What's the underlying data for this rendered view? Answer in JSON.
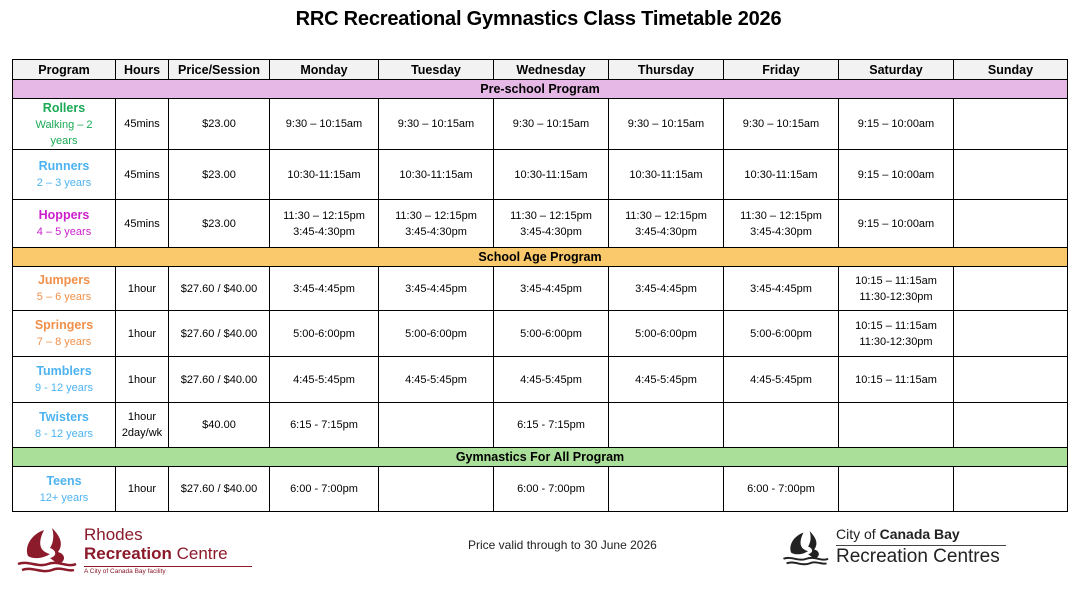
{
  "title": "RRC Recreational Gymnastics Class Timetable 2026",
  "table": {
    "headers": [
      "Program",
      "Hours",
      "Price/Session",
      "Monday",
      "Tuesday",
      "Wednesday",
      "Thursday",
      "Friday",
      "Saturday",
      "Sunday"
    ],
    "sections": [
      {
        "label": "Pre-school Program",
        "color": "#e6b8e6",
        "rows": [
          {
            "name": "Rollers",
            "age": "Walking –  2 years",
            "color": "#1aaa55",
            "hours": "45mins",
            "price": "$23.00",
            "days": [
              [
                "9:30 – 10:15am"
              ],
              [
                "9:30 – 10:15am"
              ],
              [
                "9:30 – 10:15am"
              ],
              [
                "9:30 – 10:15am"
              ],
              [
                "9:30 – 10:15am"
              ],
              [
                "9:15 – 10:00am"
              ],
              []
            ]
          },
          {
            "name": "Runners",
            "age": "2 –  3 years",
            "color": "#4db3f0",
            "hours": "45mins",
            "price": "$23.00",
            "days": [
              [
                "10:30-11:15am"
              ],
              [
                "10:30-11:15am"
              ],
              [
                "10:30-11:15am"
              ],
              [
                "10:30-11:15am"
              ],
              [
                "10:30-11:15am"
              ],
              [
                "9:15 – 10:00am"
              ],
              []
            ]
          },
          {
            "name": "Hoppers",
            "age": "4 – 5 years",
            "color": "#cc1fcc",
            "hours": "45mins",
            "price": "$23.00",
            "days": [
              [
                "11:30 – 12:15pm",
                "3:45-4:30pm"
              ],
              [
                "11:30 – 12:15pm",
                "3:45-4:30pm"
              ],
              [
                "11:30 – 12:15pm",
                "3:45-4:30pm"
              ],
              [
                "11:30 – 12:15pm",
                "3:45-4:30pm"
              ],
              [
                "11:30 – 12:15pm",
                "3:45-4:30pm"
              ],
              [
                "9:15 – 10:00am"
              ],
              []
            ]
          }
        ]
      },
      {
        "label": "School Age Program",
        "color": "#f9c96b",
        "rows": [
          {
            "name": "Jumpers",
            "age": "5 – 6 years",
            "color": "#f0904a",
            "hours": "1hour",
            "price": "$27.60 / $40.00",
            "days": [
              [
                "3:45-4:45pm"
              ],
              [
                "3:45-4:45pm"
              ],
              [
                "3:45-4:45pm"
              ],
              [
                "3:45-4:45pm"
              ],
              [
                "3:45-4:45pm"
              ],
              [
                "10:15 – 11:15am",
                "11:30-12:30pm"
              ],
              []
            ]
          },
          {
            "name": "Springers",
            "age": "7 – 8 years",
            "color": "#f0904a",
            "hours": "1hour",
            "price": "$27.60 / $40.00",
            "days": [
              [
                "5:00-6:00pm"
              ],
              [
                "5:00-6:00pm"
              ],
              [
                "5:00-6:00pm"
              ],
              [
                "5:00-6:00pm"
              ],
              [
                "5:00-6:00pm"
              ],
              [
                "10:15 – 11:15am",
                "11:30-12:30pm"
              ],
              []
            ]
          },
          {
            "name": "Tumblers",
            "age": "9 - 12 years",
            "color": "#4db3f0",
            "hours": "1hour",
            "price": "$27.60 / $40.00",
            "days": [
              [
                "4:45-5:45pm"
              ],
              [
                "4:45-5:45pm"
              ],
              [
                "4:45-5:45pm"
              ],
              [
                "4:45-5:45pm"
              ],
              [
                "4:45-5:45pm"
              ],
              [
                "10:15 – 11:15am"
              ],
              []
            ]
          },
          {
            "name": "Twisters",
            "age": "8 - 12 years",
            "color": "#4db3f0",
            "hours": "1hour 2day/wk",
            "hours_lines": [
              "1hour",
              "2day/wk"
            ],
            "price": "$40.00",
            "days": [
              [
                "6:15 - 7:15pm"
              ],
              [],
              [
                "6:15 - 7:15pm"
              ],
              [],
              [],
              [],
              []
            ]
          }
        ]
      },
      {
        "label": "Gymnastics For All Program",
        "color": "#a9df98",
        "rows": [
          {
            "name": "Teens",
            "age": "12+ years",
            "color": "#4db3f0",
            "hours": "1hour",
            "price": "$27.60 / $40.00",
            "days": [
              [
                "6:00 - 7:00pm"
              ],
              [],
              [
                "6:00 - 7:00pm"
              ],
              [],
              [
                "6:00 - 7:00pm"
              ],
              [],
              []
            ]
          }
        ]
      }
    ]
  },
  "footer": {
    "note": "Price valid through to 30 June 2026",
    "logo_left": {
      "line1": "Rhodes",
      "line2_bold": "Recreation",
      "line2_rest": " Centre",
      "tagline": "A City of Canada Bay facility",
      "color": "#8b1a2b",
      "icon": "sail-waves-logo-icon"
    },
    "logo_right": {
      "line1_pre": "City of ",
      "line1_bold": "Canada Bay",
      "line2": "Recreation Centres",
      "color": "#222222",
      "icon": "sail-waves-logo-icon"
    }
  }
}
